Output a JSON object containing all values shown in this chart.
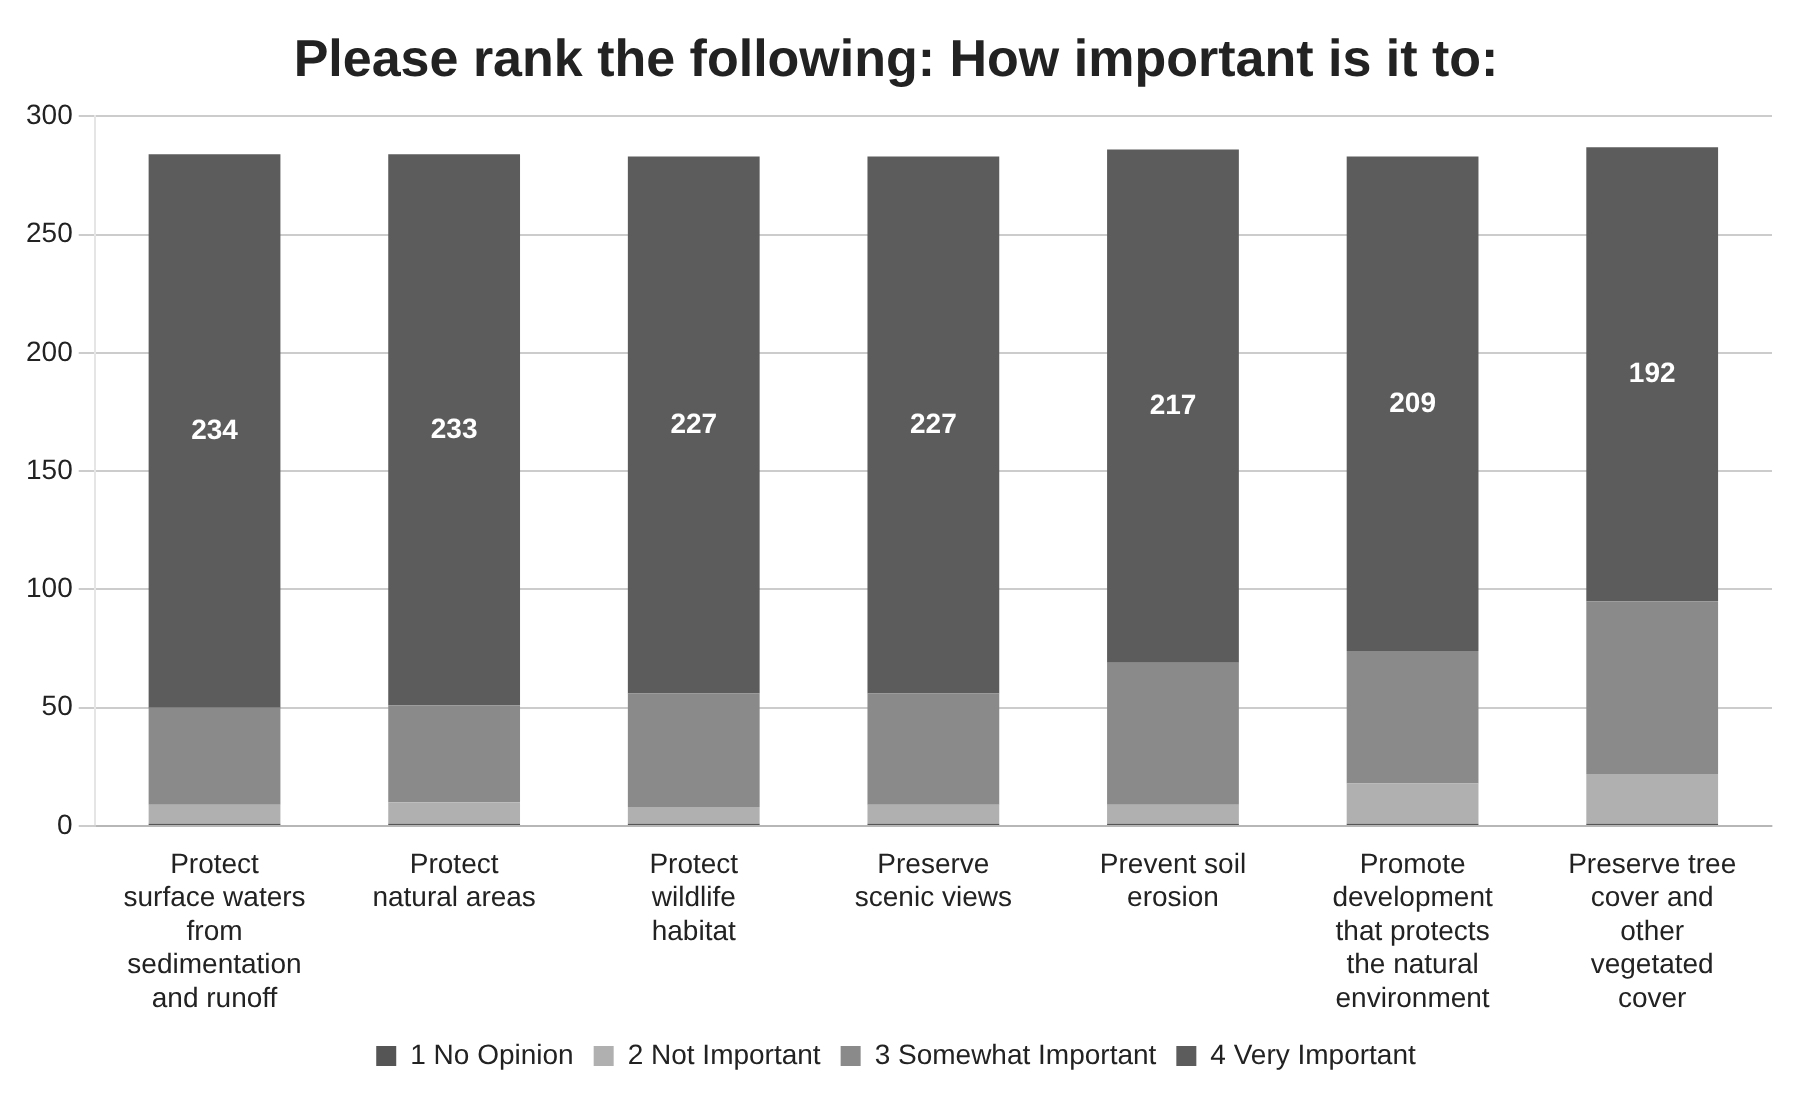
{
  "chart_data": {
    "type": "bar",
    "stacked": true,
    "title": "Please rank the following: How important is it to:",
    "categories": [
      "Protect surface waters from sedimentation and runoff",
      "Protect natural areas",
      "Protect wildlife habitat",
      "Preserve scenic views",
      "Prevent soil erosion",
      "Promote development that protects the natural environment",
      "Preserve tree cover and other vegetated cover"
    ],
    "series": [
      {
        "name": "1 No Opinion",
        "color": "#555555",
        "values": [
          1,
          1,
          1,
          1,
          1,
          1,
          1
        ]
      },
      {
        "name": "2 Not Important",
        "color": "#b0b0b0",
        "values": [
          8,
          9,
          7,
          8,
          8,
          17,
          21
        ]
      },
      {
        "name": "3 Somewhat Important",
        "color": "#8a8a8a",
        "values": [
          41,
          41,
          48,
          47,
          60,
          56,
          73
        ]
      },
      {
        "name": "4 Very Important",
        "color": "#5c5c5c",
        "values": [
          234,
          233,
          227,
          227,
          217,
          209,
          192
        ],
        "value_labels": [
          "234",
          "233",
          "227",
          "227",
          "217",
          "209",
          "192"
        ]
      }
    ],
    "ylim": [
      0,
      300
    ],
    "yticks": [
      0,
      50,
      100,
      150,
      200,
      250,
      300
    ],
    "grid": "y",
    "legend": "bottom"
  }
}
